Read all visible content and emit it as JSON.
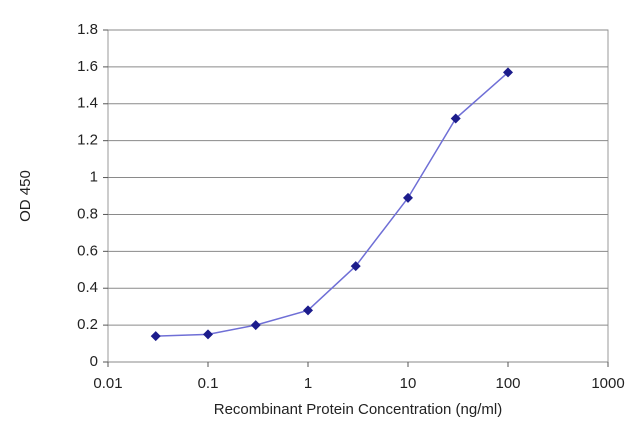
{
  "chart_data": {
    "type": "line",
    "x_label": "Recombinant Protein Concentration (ng/ml)",
    "y_label": "OD 450",
    "x": [
      0.03,
      0.1,
      0.3,
      1,
      3,
      10,
      30,
      100
    ],
    "values": [
      0.14,
      0.15,
      0.2,
      0.28,
      0.52,
      0.89,
      1.32,
      1.57
    ],
    "line_color": "#6f6fd6",
    "marker_color": "#1c1c8c",
    "xlim": [
      0.01,
      1000
    ],
    "xticks": [
      0.01,
      0.1,
      1,
      10,
      100,
      1000
    ],
    "log_x": true,
    "ylim": [
      0,
      1.8
    ],
    "yticks": [
      0,
      0.2,
      0.4,
      0.6,
      0.8,
      1,
      1.2,
      1.4,
      1.6,
      1.8
    ],
    "grid": true
  }
}
